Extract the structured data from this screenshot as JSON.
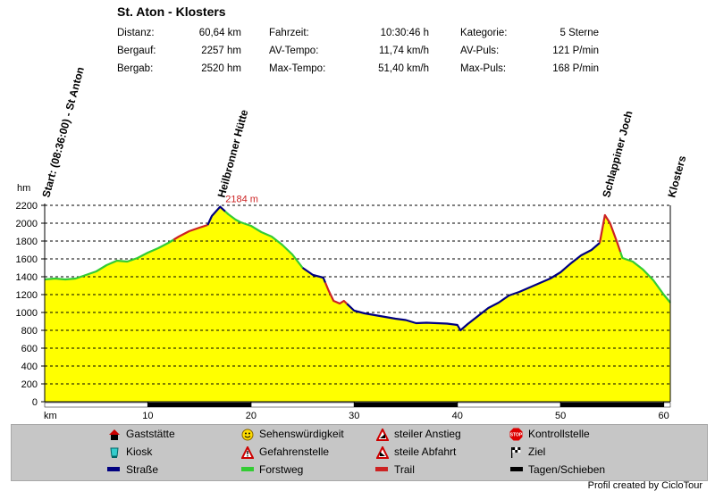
{
  "title": "St. Aton - Klosters",
  "stats": [
    {
      "label": "Distanz:",
      "value": "60,64 km"
    },
    {
      "label": "Bergauf:",
      "value": "2257 hm"
    },
    {
      "label": "Bergab:",
      "value": "2520 hm"
    },
    {
      "label": "Fahrzeit:",
      "value": "10:30:46 h"
    },
    {
      "label": "AV-Tempo:",
      "value": "11,74 km/h"
    },
    {
      "label": "Max-Tempo:",
      "value": "51,40 km/h"
    },
    {
      "label": "Kategorie:",
      "value": "5 Sterne"
    },
    {
      "label": "AV-Puls:",
      "value": "121 P/min"
    },
    {
      "label": "Max-Puls:",
      "value": "168 P/min"
    }
  ],
  "chart_data": {
    "type": "area",
    "xlabel": "km",
    "ylabel": "hm",
    "xlim": [
      0,
      60.64
    ],
    "ylim": [
      0,
      2200
    ],
    "xticks": [
      10,
      20,
      30,
      40,
      50,
      60
    ],
    "yticks": [
      0,
      200,
      400,
      600,
      800,
      1000,
      1200,
      1400,
      1600,
      1800,
      2000,
      2200
    ],
    "max_label": "2184 m",
    "max_point": {
      "x": 17.0,
      "y": 2184
    },
    "profile": [
      [
        0,
        1370
      ],
      [
        1,
        1380
      ],
      [
        2,
        1370
      ],
      [
        3,
        1380
      ],
      [
        4,
        1420
      ],
      [
        5,
        1460
      ],
      [
        6,
        1530
      ],
      [
        7,
        1580
      ],
      [
        8,
        1570
      ],
      [
        9,
        1610
      ],
      [
        10,
        1670
      ],
      [
        11,
        1720
      ],
      [
        12,
        1780
      ],
      [
        13,
        1850
      ],
      [
        14,
        1910
      ],
      [
        15,
        1950
      ],
      [
        15.8,
        1980
      ],
      [
        16.2,
        2080
      ],
      [
        17,
        2184
      ],
      [
        17.8,
        2100
      ],
      [
        18.5,
        2040
      ],
      [
        19,
        2010
      ],
      [
        20,
        1970
      ],
      [
        21,
        1900
      ],
      [
        22,
        1850
      ],
      [
        23,
        1760
      ],
      [
        24,
        1650
      ],
      [
        25,
        1500
      ],
      [
        26,
        1420
      ],
      [
        27,
        1390
      ],
      [
        27.5,
        1250
      ],
      [
        28,
        1130
      ],
      [
        28.6,
        1100
      ],
      [
        29,
        1130
      ],
      [
        30,
        1020
      ],
      [
        31,
        990
      ],
      [
        32,
        970
      ],
      [
        33,
        950
      ],
      [
        34,
        930
      ],
      [
        35,
        915
      ],
      [
        36,
        880
      ],
      [
        37,
        885
      ],
      [
        38,
        880
      ],
      [
        39,
        875
      ],
      [
        40,
        860
      ],
      [
        40.3,
        800
      ],
      [
        41,
        870
      ],
      [
        42,
        960
      ],
      [
        43,
        1050
      ],
      [
        44,
        1110
      ],
      [
        45,
        1190
      ],
      [
        46,
        1230
      ],
      [
        47,
        1280
      ],
      [
        48,
        1330
      ],
      [
        49,
        1380
      ],
      [
        50,
        1450
      ],
      [
        51,
        1550
      ],
      [
        52,
        1640
      ],
      [
        53,
        1700
      ],
      [
        53.8,
        1780
      ],
      [
        54.3,
        2090
      ],
      [
        54.8,
        2000
      ],
      [
        55.5,
        1780
      ],
      [
        56,
        1610
      ],
      [
        57,
        1570
      ],
      [
        58,
        1480
      ],
      [
        59,
        1360
      ],
      [
        60,
        1200
      ],
      [
        60.64,
        1110
      ]
    ],
    "waypoints": [
      {
        "label": "Start: (08:36:00) - St Anton",
        "x": 0
      },
      {
        "label": "Heilbronner Hütte",
        "x": 17.0
      },
      {
        "label": "Schlappiner Joch",
        "x": 54.3
      },
      {
        "label": "Klosters",
        "x": 60.64
      }
    ],
    "surface_segments": [
      {
        "type": "Forstweg",
        "from": 0,
        "to": 12.5
      },
      {
        "type": "Trail",
        "from": 12.5,
        "to": 15.8
      },
      {
        "type": "Straße",
        "from": 15.8,
        "to": 17.5
      },
      {
        "type": "Forstweg",
        "from": 17.5,
        "to": 25
      },
      {
        "type": "Straße",
        "from": 25,
        "to": 27.2
      },
      {
        "type": "Trail",
        "from": 27.2,
        "to": 29.3
      },
      {
        "type": "Straße",
        "from": 29.3,
        "to": 53.8
      },
      {
        "type": "Trail",
        "from": 53.8,
        "to": 55.8
      },
      {
        "type": "Forstweg",
        "from": 55.8,
        "to": 60.64
      }
    ],
    "push_segments": [
      [
        10,
        20
      ],
      [
        30,
        40
      ],
      [
        50,
        60
      ]
    ],
    "colors": {
      "fill": "#ffff00",
      "Straße": "#000080",
      "Forstweg": "#33cc33",
      "Trail": "#cc2222",
      "push": "#000000",
      "max": "#cc2222"
    }
  },
  "legend": [
    {
      "icon": "house-icon",
      "label": "Gaststätte"
    },
    {
      "icon": "kiosk-icon",
      "label": "Kiosk"
    },
    {
      "icon": "road-line",
      "label": "Straße",
      "color": "#000080"
    },
    {
      "icon": "smiley-icon",
      "label": "Sehenswürdigkeit"
    },
    {
      "icon": "warning-icon",
      "label": "Gefahrenstelle"
    },
    {
      "icon": "forest-line",
      "label": "Forstweg",
      "color": "#33cc33"
    },
    {
      "icon": "steep-up-icon",
      "label": "steiler Anstieg"
    },
    {
      "icon": "steep-down-icon",
      "label": "steile Abfahrt"
    },
    {
      "icon": "trail-line",
      "label": "Trail",
      "color": "#cc2222"
    },
    {
      "icon": "stop-icon",
      "label": "Kontrollstelle"
    },
    {
      "icon": "finish-flag-icon",
      "label": "Ziel"
    },
    {
      "icon": "push-line",
      "label": "Tagen/Schieben",
      "color": "#000000"
    }
  ],
  "credit": "Profil created by CicloTour"
}
